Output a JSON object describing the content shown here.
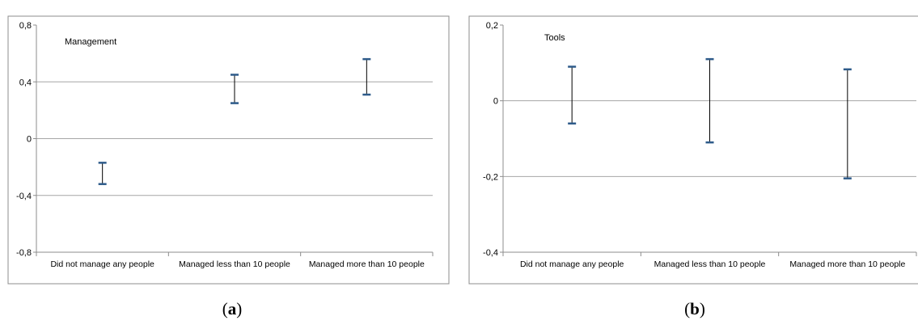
{
  "chart_data": [
    {
      "type": "errorbar",
      "panel_label": "a",
      "annotation": "Management",
      "categories": [
        "Did not manage any people",
        "Managed less than 10 people",
        "Managed more than 10 people"
      ],
      "intervals": [
        {
          "low": -0.32,
          "high": -0.17
        },
        {
          "low": 0.25,
          "high": 0.45
        },
        {
          "low": 0.31,
          "high": 0.56
        }
      ],
      "yticks": [
        0.8,
        0.4,
        0,
        -0.4,
        -0.8
      ],
      "ytick_labels": [
        "0,8",
        "0,4",
        "0",
        "-0,4",
        "-0,8"
      ],
      "ylim": [
        -0.8,
        0.8
      ],
      "grid": true
    },
    {
      "type": "errorbar",
      "panel_label": "b",
      "annotation": "Tools",
      "categories": [
        "Did not manage any people",
        "Managed less than 10 people",
        "Managed more than 10 people"
      ],
      "intervals": [
        {
          "low": -0.06,
          "high": 0.09
        },
        {
          "low": -0.11,
          "high": 0.11
        },
        {
          "low": -0.205,
          "high": 0.083
        }
      ],
      "yticks": [
        0.2,
        0,
        -0.2,
        -0.4
      ],
      "ytick_labels": [
        "0,2",
        "0",
        "-0,2",
        "-0,4"
      ],
      "ylim": [
        -0.4,
        0.2
      ],
      "grid": true
    }
  ],
  "colors": {
    "cap": "#2e5b8a",
    "whisker": "#000000",
    "grid": "#a6a6a6",
    "frame": "#8c8c8c"
  }
}
